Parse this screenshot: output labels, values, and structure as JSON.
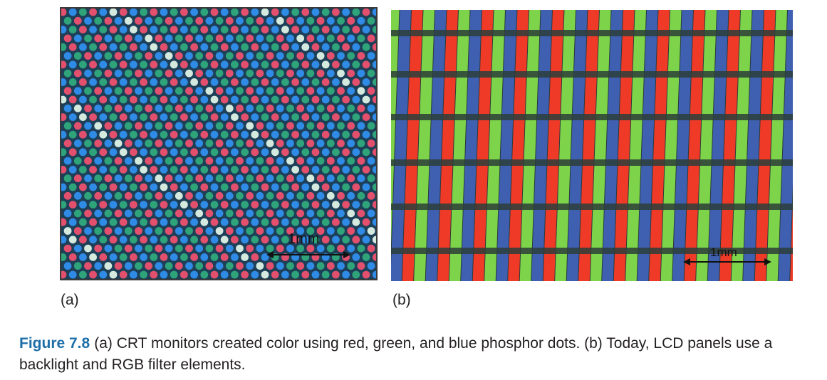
{
  "panel_a": {
    "label": "(a)",
    "scale_label": "1mm",
    "colors": {
      "background": "#1d3f57",
      "red": "#e2506e",
      "green": "#2fa37a",
      "blue": "#2f8be6",
      "white": "#d4eadf"
    }
  },
  "panel_b": {
    "label": "(b)",
    "scale_label": "1mm",
    "colors": {
      "background": "#2a3a3a",
      "red": "#ef3a28",
      "green": "#7dd44a",
      "blue": "#3f5fb0",
      "grid": "#2b3e3a"
    }
  },
  "caption": {
    "figure_number": "Figure 7.8",
    "text": "(a) CRT monitors created color using red, green, and blue phosphor dots. (b) Today, LCD panels use a backlight and RGB filter elements."
  }
}
